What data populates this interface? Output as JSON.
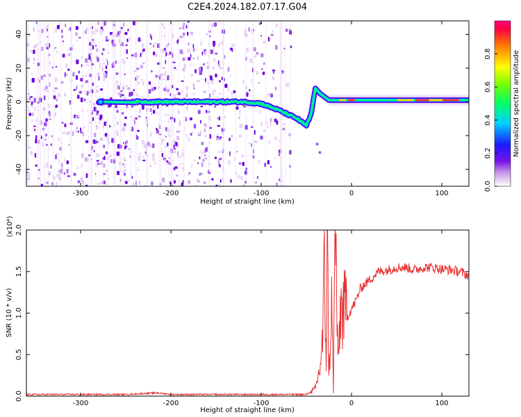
{
  "figure": {
    "title": "C2E4.2024.182.07.17.G04"
  },
  "chart_data": [
    {
      "type": "heatmap",
      "name": "spectrogram",
      "xlabel": "Height of straight line (km)",
      "ylabel": "Frequency (Hz)",
      "xlim": [
        -360,
        130
      ],
      "ylim": [
        -50,
        48
      ],
      "xticks": [
        -300,
        -200,
        -100,
        0,
        100
      ],
      "yticks": [
        -40,
        -20,
        0,
        20,
        40
      ],
      "colorbar": {
        "label": "Normalized spectral amplitude",
        "range": [
          0,
          1
        ],
        "ticks": [
          "0.0",
          "0.2",
          "0.4",
          "0.6",
          "0.8"
        ],
        "colormap": "white-purple-blue-cyan-green-yellow-red"
      },
      "trace": {
        "x": [
          -280,
          -245,
          -200,
          -150,
          -120,
          -100,
          -80,
          -60,
          -50,
          -45,
          -40,
          -35,
          -25,
          -10,
          0,
          50,
          100,
          130
        ],
        "y": [
          0,
          0,
          0,
          0,
          0,
          -1,
          -5,
          -10,
          -14,
          -8,
          8,
          5,
          1,
          1,
          1,
          1,
          1,
          1
        ]
      },
      "noise_until_x": -68
    },
    {
      "type": "line",
      "name": "snr",
      "xlabel": "Height of straight line (km)",
      "ylabel": "SNR (10 * v/v)",
      "multiplier": "(x10⁴)",
      "xlim": [
        -360,
        130
      ],
      "ylim": [
        0,
        2.0
      ],
      "xticks": [
        -300,
        -200,
        -100,
        0,
        100
      ],
      "yticks": [
        "0.0",
        "0.5",
        "1.0",
        "1.5",
        "2.0"
      ],
      "color": "#e83030",
      "x": [
        -360,
        -250,
        -215,
        -200,
        -100,
        -50,
        -40,
        -35,
        -32,
        -30,
        -28,
        -27,
        -25,
        -22,
        -20,
        -18,
        -15,
        -12,
        -10,
        -5,
        0,
        5,
        10,
        20,
        30,
        40,
        50,
        60,
        70,
        80,
        90,
        100,
        110,
        120,
        130
      ],
      "y": [
        0.01,
        0.01,
        0.03,
        0.01,
        0.01,
        0.01,
        0.08,
        0.3,
        0.6,
        1.4,
        0.4,
        2.0,
        0.2,
        1.0,
        0.05,
        2.0,
        0.3,
        1.0,
        0.9,
        0.95,
        1.05,
        1.15,
        1.3,
        1.4,
        1.5,
        1.52,
        1.55,
        1.55,
        1.52,
        1.55,
        1.55,
        1.53,
        1.52,
        1.5,
        1.45
      ]
    }
  ]
}
